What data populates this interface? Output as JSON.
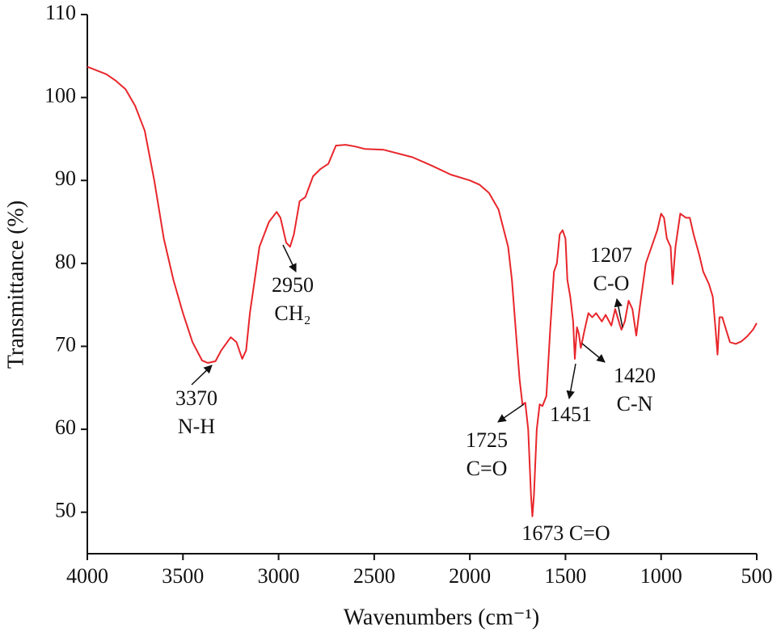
{
  "chart_data": {
    "type": "line",
    "xlabel": "Wavenumbers (cm⁻¹)",
    "ylabel": "Transmittance (%)",
    "color": "#e8262b",
    "xlim": [
      4000,
      500
    ],
    "xticks": [
      4000,
      3500,
      3000,
      2500,
      2000,
      1500,
      1000,
      500
    ],
    "ylim": [
      45,
      110
    ],
    "yticks": [
      50,
      60,
      70,
      80,
      90,
      100,
      110
    ],
    "x": [
      4000,
      3900,
      3850,
      3800,
      3750,
      3700,
      3650,
      3600,
      3550,
      3500,
      3450,
      3400,
      3370,
      3330,
      3300,
      3250,
      3220,
      3190,
      3170,
      3150,
      3100,
      3050,
      3010,
      2990,
      2960,
      2940,
      2920,
      2890,
      2860,
      2820,
      2780,
      2740,
      2700,
      2650,
      2600,
      2550,
      2450,
      2300,
      2200,
      2100,
      2000,
      1950,
      1900,
      1850,
      1800,
      1780,
      1760,
      1740,
      1725,
      1710,
      1695,
      1680,
      1673,
      1665,
      1650,
      1635,
      1620,
      1600,
      1580,
      1560,
      1545,
      1530,
      1515,
      1500,
      1490,
      1475,
      1460,
      1451,
      1440,
      1430,
      1420,
      1400,
      1380,
      1360,
      1340,
      1310,
      1290,
      1260,
      1240,
      1215,
      1207,
      1190,
      1170,
      1150,
      1130,
      1110,
      1080,
      1050,
      1020,
      1000,
      985,
      970,
      950,
      940,
      925,
      900,
      870,
      850,
      830,
      800,
      780,
      750,
      730,
      715,
      705,
      695,
      680,
      660,
      640,
      610,
      580,
      550,
      520,
      500
    ],
    "values": [
      103.7,
      102.8,
      102,
      101,
      99,
      96,
      90,
      83,
      78,
      74,
      70.5,
      68.3,
      68,
      68.2,
      69.5,
      71.1,
      70.5,
      68.5,
      69.5,
      74,
      82,
      85,
      86.2,
      85.5,
      82.5,
      82,
      83.5,
      87.5,
      88,
      90.5,
      91.4,
      92,
      94.2,
      94.3,
      94.1,
      93.8,
      93.7,
      92.8,
      91.8,
      90.7,
      90,
      89.5,
      88.5,
      86.5,
      82,
      78,
      72,
      66,
      63,
      63.2,
      60,
      52,
      49.5,
      52,
      60,
      63,
      62.8,
      64,
      72,
      79,
      80,
      83.5,
      84,
      83,
      78,
      76,
      73,
      68.5,
      72.3,
      71.5,
      69.8,
      72,
      74,
      73.5,
      74,
      73,
      73.8,
      72.5,
      74.5,
      72.5,
      72,
      73,
      75.5,
      74.5,
      71.3,
      75,
      80,
      82,
      84,
      86,
      85.5,
      83,
      82,
      77.5,
      82,
      86,
      85.5,
      85.5,
      83.5,
      81,
      79,
      77.5,
      76,
      72,
      69,
      73.5,
      73.5,
      72,
      70.5,
      70.3,
      70.6,
      71.2,
      72,
      72.8
    ],
    "annotations": [
      {
        "lines": [
          "3370",
          "N-H"
        ]
      },
      {
        "lines": [
          "2950",
          "CH₂"
        ]
      },
      {
        "lines": [
          "1725",
          "C=O"
        ]
      },
      {
        "lines": [
          "1673 C=O"
        ]
      },
      {
        "lines": [
          "1451"
        ]
      },
      {
        "lines": [
          "1420",
          "C-N"
        ]
      },
      {
        "lines": [
          "1207",
          "C-O"
        ]
      }
    ]
  }
}
